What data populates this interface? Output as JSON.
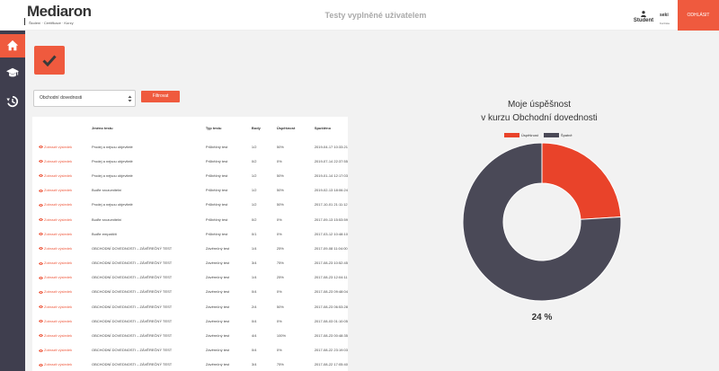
{
  "header": {
    "logo": "Mediaron",
    "logo_sub": "Školení · Certifikace · Kurzy",
    "title": "Testy vyplněné uživatelem",
    "user_role": "Student",
    "user_name": "seki",
    "user_sub": "Kurzista",
    "logout_label": "ODHLÁSIT"
  },
  "sidebar": [
    {
      "icon": "home-icon",
      "active": true
    },
    {
      "icon": "graduation-cap-icon",
      "active": false
    },
    {
      "icon": "history-icon",
      "active": false
    }
  ],
  "filter": {
    "selected_course": "Obchodní dovednosti",
    "filter_button": "Filtrovat"
  },
  "table": {
    "headers": [
      "",
      "Jméno testu",
      "Typ testu",
      "Body",
      "Úspěšnost",
      "Spuštěno"
    ],
    "detail_label": "Zobrazit výsledek",
    "rows": [
      [
        "Prodej a nejsou objevitelé",
        "Průběžný test",
        "1/2",
        "50%",
        "2019-04-17 10:33:21"
      ],
      [
        "Prodej a nejsou objevitelé",
        "Průběžný test",
        "0/2",
        "0%",
        "2019-07-14 22:37:55"
      ],
      [
        "Prodej a nejsou objevitelé",
        "Průběžný test",
        "1/2",
        "50%",
        "2019-01-14 12:17:03"
      ],
      [
        "Buďte srozumitelní",
        "Průběžný test",
        "1/2",
        "50%",
        "2019-02-13 18:06:24"
      ],
      [
        "Prodej a nejsou objevitelé",
        "Průběžný test",
        "1/2",
        "50%",
        "2017-10-01 21:11:12"
      ],
      [
        "Buďte srozumitelní",
        "Průběžný test",
        "0/2",
        "0%",
        "2017-09-13 15:53:59"
      ],
      [
        "Buďte empatičtí",
        "Průběžný test",
        "0/1",
        "0%",
        "2017-03-12 10:48:10"
      ],
      [
        "OBCHODNÍ DOVEDNOSTI – ZÁVĚREČNÝ TEST",
        "Závěrečný test",
        "1/4",
        "25%",
        "2017-09-08 11:04:00"
      ],
      [
        "OBCHODNÍ DOVEDNOSTI – ZÁVĚREČNÝ TEST",
        "Závěrečný test",
        "3/4",
        "75%",
        "2017-08-23 10:52:45"
      ],
      [
        "OBCHODNÍ DOVEDNOSTI – ZÁVĚREČNÝ TEST",
        "Závěrečný test",
        "1/4",
        "25%",
        "2017-08-23 12:04:11"
      ],
      [
        "OBCHODNÍ DOVEDNOSTI – ZÁVĚREČNÝ TEST",
        "Závěrečný test",
        "0/4",
        "0%",
        "2017-08-23 09:48:04"
      ],
      [
        "OBCHODNÍ DOVEDNOSTI – ZÁVĚREČNÝ TEST",
        "Závěrečný test",
        "2/4",
        "50%",
        "2017-08-23 06:53:28"
      ],
      [
        "OBCHODNÍ DOVEDNOSTI – ZÁVĚREČNÝ TEST",
        "Závěrečný test",
        "0/4",
        "0%",
        "2017-08-03 01:10:05"
      ],
      [
        "OBCHODNÍ DOVEDNOSTI – ZÁVĚREČNÝ TEST",
        "Závěrečný test",
        "4/4",
        "100%",
        "2017-08-23 00:48:35"
      ],
      [
        "OBCHODNÍ DOVEDNOSTI – ZÁVĚREČNÝ TEST",
        "Závěrečný test",
        "0/4",
        "0%",
        "2017-08-22 23:19:03"
      ],
      [
        "OBCHODNÍ DOVEDNOSTI – ZÁVĚREČNÝ TEST",
        "Závěrečný test",
        "3/4",
        "75%",
        "2017-08-22 17:05:40"
      ]
    ]
  },
  "chart_data": {
    "type": "pie",
    "title_line1": "Moje úspěšnost",
    "title_line2": "v kurzu Obchodní dovednosti",
    "categories": [
      "Úspěšnost",
      "Špatně"
    ],
    "values": [
      24,
      76
    ],
    "colors": [
      "#e9432a",
      "#4a4957"
    ],
    "donut": true,
    "center_label": "24 %",
    "legend_position": "top"
  },
  "colors": {
    "accent": "#ef5a3e",
    "sidebar": "#3f3e4e"
  }
}
